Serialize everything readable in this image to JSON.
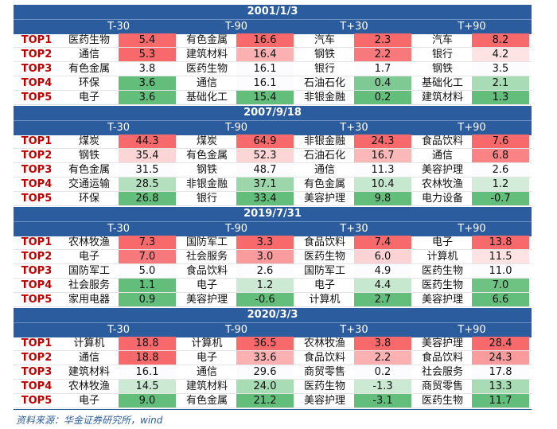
{
  "columns": [
    "T-30",
    "T-90",
    "T+30",
    "T+90"
  ],
  "ranks": [
    "TOP1",
    "TOP2",
    "TOP3",
    "TOP4",
    "TOP5"
  ],
  "blocks": [
    {
      "date": "2001/1/3",
      "rows": [
        [
          {
            "industry": "医药生物",
            "value": "5.4",
            "color": "#f8696b"
          },
          {
            "industry": "有色金属",
            "value": "16.6",
            "color": "#f8696b"
          },
          {
            "industry": "汽车",
            "value": "2.3",
            "color": "#f8696b"
          },
          {
            "industry": "汽车",
            "value": "8.2",
            "color": "#f8696b"
          }
        ],
        [
          {
            "industry": "通信",
            "value": "5.3",
            "color": "#f8696b"
          },
          {
            "industry": "建筑材料",
            "value": "16.4",
            "color": "#fbb0b1"
          },
          {
            "industry": "钢铁",
            "value": "2.2",
            "color": "#f8797b"
          },
          {
            "industry": "银行",
            "value": "4.2",
            "color": "#fde3e4"
          }
        ],
        [
          {
            "industry": "有色金属",
            "value": "3.8",
            "color": "#fcfcff"
          },
          {
            "industry": "医药生物",
            "value": "16.1",
            "color": "#fcfcff"
          },
          {
            "industry": "银行",
            "value": "1.7",
            "color": "#fcfcff"
          },
          {
            "industry": "钢铁",
            "value": "3.5",
            "color": "#fcfcff"
          }
        ],
        [
          {
            "industry": "环保",
            "value": "3.6",
            "color": "#63be7b"
          },
          {
            "industry": "通信",
            "value": "16.1",
            "color": "#fcfcff"
          },
          {
            "industry": "石油石化",
            "value": "0.4",
            "color": "#7fca94"
          },
          {
            "industry": "基础化工",
            "value": "2.1",
            "color": "#a8dcb5"
          }
        ],
        [
          {
            "industry": "电子",
            "value": "3.6",
            "color": "#63be7b"
          },
          {
            "industry": "基础化工",
            "value": "15.4",
            "color": "#63be7b"
          },
          {
            "industry": "非银金融",
            "value": "0.2",
            "color": "#63be7b"
          },
          {
            "industry": "建筑材料",
            "value": "1.3",
            "color": "#63be7b"
          }
        ]
      ]
    },
    {
      "date": "2007/9/18",
      "rows": [
        [
          {
            "industry": "煤炭",
            "value": "44.3",
            "color": "#f8696b"
          },
          {
            "industry": "煤炭",
            "value": "64.9",
            "color": "#f8696b"
          },
          {
            "industry": "非银金融",
            "value": "24.3",
            "color": "#f8696b"
          },
          {
            "industry": "食品饮料",
            "value": "7.6",
            "color": "#f8696b"
          }
        ],
        [
          {
            "industry": "钢铁",
            "value": "35.4",
            "color": "#fcd6d7"
          },
          {
            "industry": "有色金属",
            "value": "52.3",
            "color": "#fcd6d7"
          },
          {
            "industry": "石油石化",
            "value": "16.7",
            "color": "#fbb8b9"
          },
          {
            "industry": "通信",
            "value": "6.8",
            "color": "#f98385"
          }
        ],
        [
          {
            "industry": "有色金属",
            "value": "31.5",
            "color": "#fcfcff"
          },
          {
            "industry": "钢铁",
            "value": "48.7",
            "color": "#fcfcff"
          },
          {
            "industry": "通信",
            "value": "11.3",
            "color": "#fcfcff"
          },
          {
            "industry": "美容护理",
            "value": "2.6",
            "color": "#fcfcff"
          }
        ],
        [
          {
            "industry": "交通运输",
            "value": "28.5",
            "color": "#b4e0bf"
          },
          {
            "industry": "非银金融",
            "value": "37.1",
            "color": "#9dd6ab"
          },
          {
            "industry": "有色金属",
            "value": "10.4",
            "color": "#c6e8cf"
          },
          {
            "industry": "农林牧渔",
            "value": "1.2",
            "color": "#d2ecd9"
          }
        ],
        [
          {
            "industry": "环保",
            "value": "26.8",
            "color": "#63be7b"
          },
          {
            "industry": "银行",
            "value": "33.4",
            "color": "#63be7b"
          },
          {
            "industry": "美容护理",
            "value": "9.8",
            "color": "#63be7b"
          },
          {
            "industry": "电力设备",
            "value": "-0.7",
            "color": "#63be7b"
          }
        ]
      ]
    },
    {
      "date": "2019/7/31",
      "rows": [
        [
          {
            "industry": "农林牧渔",
            "value": "7.3",
            "color": "#f8696b"
          },
          {
            "industry": "国防军工",
            "value": "3.3",
            "color": "#f8696b"
          },
          {
            "industry": "食品饮料",
            "value": "7.4",
            "color": "#f8696b"
          },
          {
            "industry": "电子",
            "value": "13.8",
            "color": "#f8696b"
          }
        ],
        [
          {
            "industry": "电子",
            "value": "7.0",
            "color": "#f8797b"
          },
          {
            "industry": "社会服务",
            "value": "3.0",
            "color": "#fa9c9d"
          },
          {
            "industry": "医药生物",
            "value": "6.0",
            "color": "#fcd3d4"
          },
          {
            "industry": "计算机",
            "value": "11.5",
            "color": "#fde3e4"
          }
        ],
        [
          {
            "industry": "国防军工",
            "value": "5.0",
            "color": "#fcfcff"
          },
          {
            "industry": "食品饮料",
            "value": "2.6",
            "color": "#fcfcff"
          },
          {
            "industry": "国防军工",
            "value": "4.9",
            "color": "#fcfcff"
          },
          {
            "industry": "医药生物",
            "value": "11.0",
            "color": "#fcfcff"
          }
        ],
        [
          {
            "industry": "社会服务",
            "value": "1.1",
            "color": "#63be7b"
          },
          {
            "industry": "电子",
            "value": "1.2",
            "color": "#cbe9d3"
          },
          {
            "industry": "电子",
            "value": "4.4",
            "color": "#c6e8cf"
          },
          {
            "industry": "医药生物",
            "value": "7.0",
            "color": "#6ec282"
          }
        ],
        [
          {
            "industry": "家用电器",
            "value": "0.9",
            "color": "#63be7b"
          },
          {
            "industry": "美容护理",
            "value": "-0.6",
            "color": "#63be7b"
          },
          {
            "industry": "计算机",
            "value": "2.7",
            "color": "#63be7b"
          },
          {
            "industry": "美容护理",
            "value": "6.6",
            "color": "#63be7b"
          }
        ]
      ]
    },
    {
      "date": "2020/3/3",
      "rows": [
        [
          {
            "industry": "计算机",
            "value": "18.8",
            "color": "#f8696b"
          },
          {
            "industry": "计算机",
            "value": "36.5",
            "color": "#f8696b"
          },
          {
            "industry": "农林牧渔",
            "value": "3.8",
            "color": "#f8696b"
          },
          {
            "industry": "美容护理",
            "value": "28.4",
            "color": "#f8696b"
          }
        ],
        [
          {
            "industry": "通信",
            "value": "18.8",
            "color": "#f8696b"
          },
          {
            "industry": "电子",
            "value": "33.6",
            "color": "#fbb0b1"
          },
          {
            "industry": "食品饮料",
            "value": "2.2",
            "color": "#fbb0b1"
          },
          {
            "industry": "食品饮料",
            "value": "24.3",
            "color": "#fa9c9d"
          }
        ],
        [
          {
            "industry": "建筑材料",
            "value": "16.1",
            "color": "#fcfcff"
          },
          {
            "industry": "通信",
            "value": "29.6",
            "color": "#fcfcff"
          },
          {
            "industry": "商贸零售",
            "value": "0.2",
            "color": "#fcfcff"
          },
          {
            "industry": "社会服务",
            "value": "17.8",
            "color": "#fcfcff"
          }
        ],
        [
          {
            "industry": "农林牧渔",
            "value": "14.5",
            "color": "#cbe9d3"
          },
          {
            "industry": "建筑材料",
            "value": "24.0",
            "color": "#a8dcb5"
          },
          {
            "industry": "医药生物",
            "value": "-1.3",
            "color": "#cbe9d3"
          },
          {
            "industry": "商贸零售",
            "value": "13.3",
            "color": "#a8dcb5"
          }
        ],
        [
          {
            "industry": "电子",
            "value": "9.0",
            "color": "#63be7b"
          },
          {
            "industry": "有色金属",
            "value": "21.2",
            "color": "#63be7b"
          },
          {
            "industry": "美容护理",
            "value": "-3.1",
            "color": "#63be7b"
          },
          {
            "industry": "医药生物",
            "value": "11.7",
            "color": "#63be7b"
          }
        ]
      ]
    }
  ],
  "source": "资料来源：华金证券研究所，wind"
}
